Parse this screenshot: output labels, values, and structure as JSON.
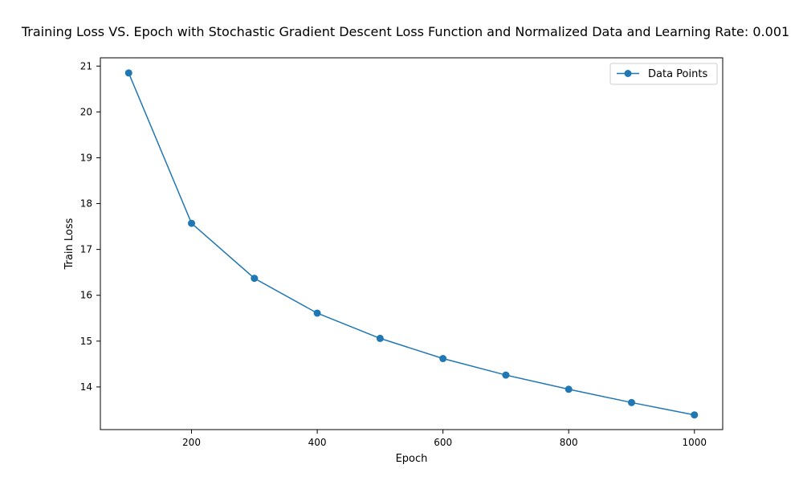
{
  "chart_data": {
    "type": "line",
    "title": "Training Loss VS. Epoch with Stochastic Gradient Descent Loss Function and Normalized Data and Learning Rate: 0.001",
    "xlabel": "Epoch",
    "ylabel": "Train Loss",
    "x": [
      100,
      200,
      300,
      400,
      500,
      600,
      700,
      800,
      900,
      1000
    ],
    "series": [
      {
        "name": "Data Points",
        "color": "#1f77b4",
        "marker": "circle",
        "values": [
          20.85,
          17.57,
          16.37,
          15.61,
          15.06,
          14.62,
          14.26,
          13.95,
          13.66,
          13.39
        ]
      }
    ],
    "xlim": [
      55,
      1045
    ],
    "ylim": [
      13.07,
      21.18
    ],
    "xticks": [
      200,
      400,
      600,
      800,
      1000
    ],
    "yticks": [
      14,
      15,
      16,
      17,
      18,
      19,
      20,
      21
    ],
    "grid": false,
    "legend_position": "top-right"
  }
}
